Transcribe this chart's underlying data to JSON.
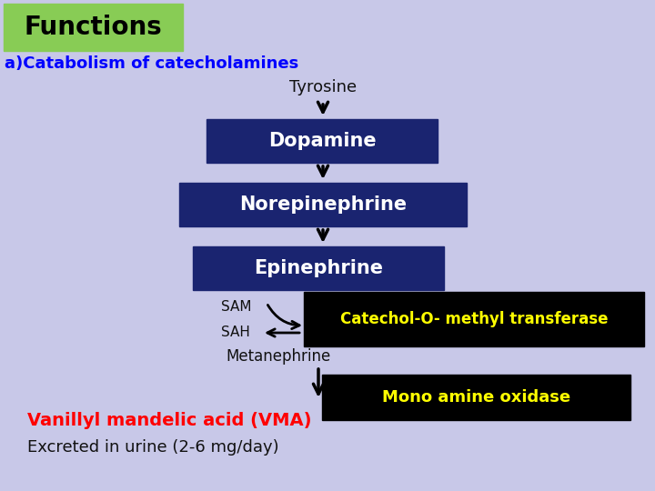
{
  "bg_color": "#c8c8e8",
  "title_box_color": "#88cc55",
  "title_text": "Functions",
  "title_text_color": "#000000",
  "subtitle_text": "a)Catabolism of catecholamines",
  "subtitle_color": "#0000ff",
  "dark_box_color": "#1a2470",
  "dark_box_text_color": "#ffffff",
  "black_box_color": "#000000",
  "yellow_text_color": "#ffff00",
  "red_text_color": "#ff0000",
  "black_text_color": "#111111",
  "tyrosine_text": "Tyrosine",
  "dopamine_label": "Dopamine",
  "norep_label": "Norepinephrine",
  "epi_label": "Epinephrine",
  "sam_text": "SAM",
  "sah_text": "SAH",
  "catechol_text": "Catechol-O- methyl transferase",
  "metaneph_text": "Metanephrine",
  "mono_text": "Mono amine oxidase",
  "vma_text": "Vanillyl mandelic acid (VMA)",
  "excrete_text": "Excreted in urine (2-6 mg/day)"
}
